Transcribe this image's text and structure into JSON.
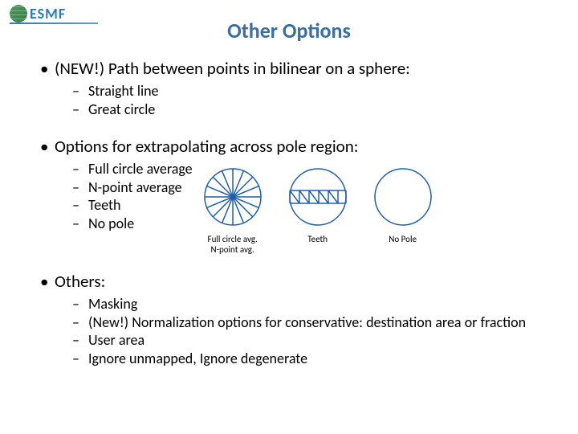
{
  "logo_text": "ESMF",
  "title": "Other Options",
  "title_color": "#3b6fa0",
  "text_color": "#000000",
  "bullets": [
    {
      "text": "(NEW!) Path between points in bilinear on a sphere:",
      "subs": [
        "Straight line",
        "Great circle"
      ]
    },
    {
      "text": "Options for extrapolating across pole region:",
      "subs": [
        "Full circle average",
        "N-point average",
        "Teeth",
        "No pole"
      ]
    },
    {
      "text": "Others:",
      "subs": [
        "Masking",
        "(New!) Normalization options for conservative: destination area or fraction",
        "User area",
        "Ignore unmapped, Ignore degenerate"
      ]
    }
  ],
  "diagrams": {
    "circle_radius": 35,
    "stroke_color": "#1f5fa8",
    "stroke_width": 1.5,
    "full_circle": {
      "label_line1": "Full circle avg.",
      "label_line2": "N-point avg.",
      "spoke_angles_deg": [
        0,
        22.5,
        45,
        67.5,
        90,
        112.5,
        135,
        157.5,
        180,
        202.5,
        225,
        247.5,
        270,
        292.5,
        315,
        337.5
      ]
    },
    "teeth": {
      "label": "Teeth",
      "band_y": [
        -8,
        8
      ],
      "verticals_x": [
        -35,
        -23,
        -11,
        1,
        13,
        25,
        35
      ],
      "diagonals": [
        [
          -35,
          -8,
          -23,
          8
        ],
        [
          -23,
          -8,
          -11,
          8
        ],
        [
          -11,
          -8,
          1,
          8
        ],
        [
          1,
          -8,
          13,
          8
        ],
        [
          13,
          -8,
          25,
          8
        ]
      ]
    },
    "no_pole": {
      "label": "No Pole"
    }
  }
}
